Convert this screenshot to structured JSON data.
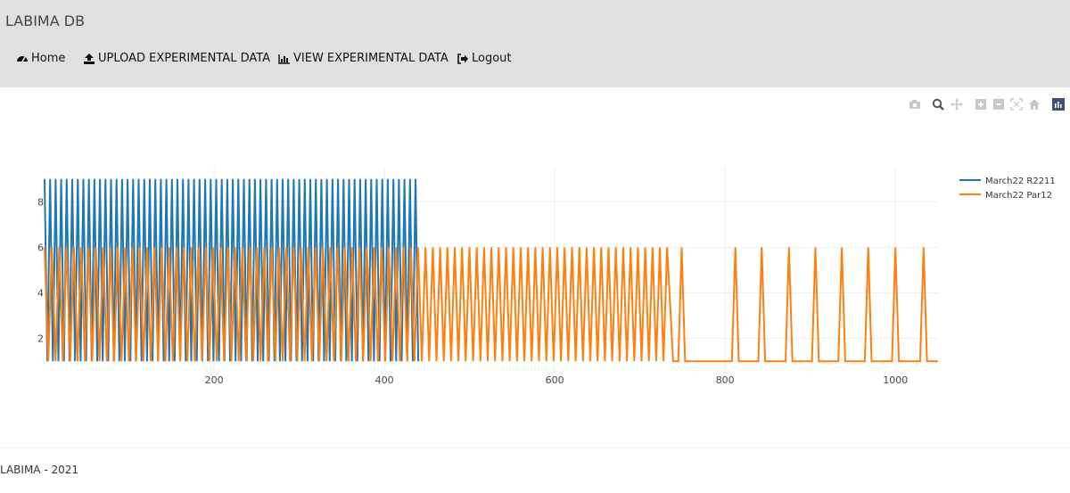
{
  "app": {
    "brand": "LABIMA DB"
  },
  "nav": {
    "items": [
      {
        "label": "Home",
        "icon": "dashboard-icon"
      },
      {
        "label": "UPLOAD EXPERIMENTAL DATA",
        "icon": "upload-icon"
      },
      {
        "label": "VIEW EXPERIMENTAL DATA",
        "icon": "chart-icon"
      },
      {
        "label": "Logout",
        "icon": "sign-out-icon"
      }
    ]
  },
  "toolbar": {
    "icons": [
      "camera-icon",
      "zoom-icon",
      "pan-icon",
      "zoom-in-icon",
      "zoom-out-icon",
      "autoscale-icon",
      "reset-axes-icon",
      "plotly-logo-icon"
    ]
  },
  "chart_data": {
    "type": "line",
    "title": "",
    "xlabel": "",
    "ylabel": "",
    "xlim": [
      1,
      1050
    ],
    "ylim": [
      0.5,
      9.5
    ],
    "xticks": [
      200,
      400,
      600,
      800,
      1000
    ],
    "yticks": [
      2,
      4,
      6,
      8
    ],
    "grid": true,
    "legend": "top-right",
    "series": [
      {
        "name": "March22 R2211",
        "color": "#1f77b4",
        "pattern": {
          "x_start": 1,
          "x_end": 440,
          "period": 6.5,
          "min": 1,
          "max": 9
        }
      },
      {
        "name": "March22 Par12",
        "color": "#ff7f0e",
        "pattern_dense": {
          "x_start": 1,
          "x_end": 735,
          "period": 8.6,
          "min": 1,
          "max": 6
        },
        "spikes": {
          "x_values": [
            749,
            812,
            843,
            875,
            906,
            937,
            968,
            1000,
            1033
          ],
          "min": 1,
          "max": 6
        },
        "baseline": 1,
        "x_end": 1050
      }
    ]
  },
  "footer": {
    "text": "LABIMA - 2021"
  }
}
